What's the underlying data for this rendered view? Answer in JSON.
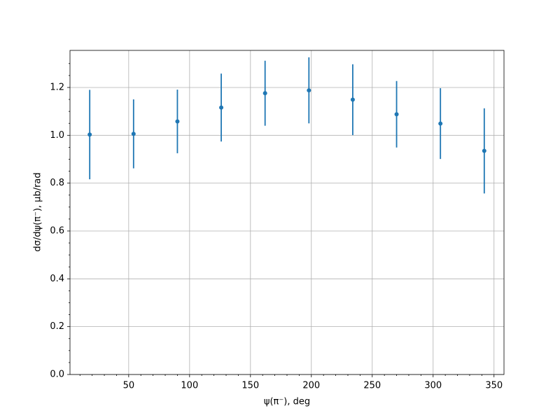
{
  "chart_data": {
    "type": "errorbar",
    "xlabel": "ψ(π⁻), deg",
    "ylabel": "dσ/dψ(π⁻), μb/rad",
    "x": [
      18,
      54,
      90,
      126,
      162,
      198,
      234,
      270,
      306,
      342
    ],
    "series": [
      {
        "color": "#1f77b4",
        "values": [
          1.003,
          1.006,
          1.058,
          1.116,
          1.176,
          1.188,
          1.149,
          1.088,
          1.049,
          0.935
        ],
        "errors": [
          0.187,
          0.144,
          0.133,
          0.142,
          0.136,
          0.138,
          0.148,
          0.139,
          0.148,
          0.178
        ]
      }
    ],
    "xlim": [
      1.8,
      358.2
    ],
    "ylim": [
      0,
      1.355
    ],
    "xticks": [
      50,
      100,
      150,
      200,
      250,
      300,
      350
    ],
    "yticks": [
      {
        "value": 0,
        "label": "0.0"
      },
      {
        "value": 0.2,
        "label": "0.2"
      },
      {
        "value": 0.4,
        "label": "0.4"
      },
      {
        "value": 0.6,
        "label": "0.6"
      },
      {
        "value": 0.8,
        "label": "0.8"
      },
      {
        "value": 1,
        "label": "1.0"
      },
      {
        "value": 1.2,
        "label": "1.2"
      }
    ],
    "xminorticks": [
      10,
      20,
      30,
      40,
      60,
      70,
      80,
      90,
      110,
      120,
      130,
      140,
      160,
      170,
      180,
      190,
      210,
      220,
      230,
      240,
      260,
      270,
      280,
      290,
      310,
      320,
      330,
      340
    ],
    "yminorticks": [
      0.05,
      0.1,
      0.15,
      0.25,
      0.3,
      0.35,
      0.45,
      0.5,
      0.55,
      0.65,
      0.7,
      0.75,
      0.85,
      0.9,
      0.95,
      1.05,
      1.1,
      1.15,
      1.25,
      1.3
    ],
    "grid": true
  }
}
